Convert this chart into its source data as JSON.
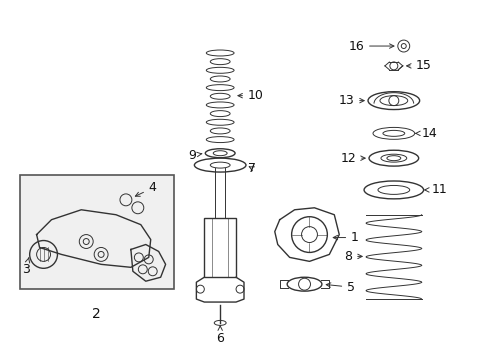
{
  "background_color": "#ffffff",
  "fig_width": 4.89,
  "fig_height": 3.6,
  "dpi": 100,
  "annotation_color": "#111111",
  "line_color": "#222222",
  "component_color": "#333333",
  "font_size_numbers": 9
}
